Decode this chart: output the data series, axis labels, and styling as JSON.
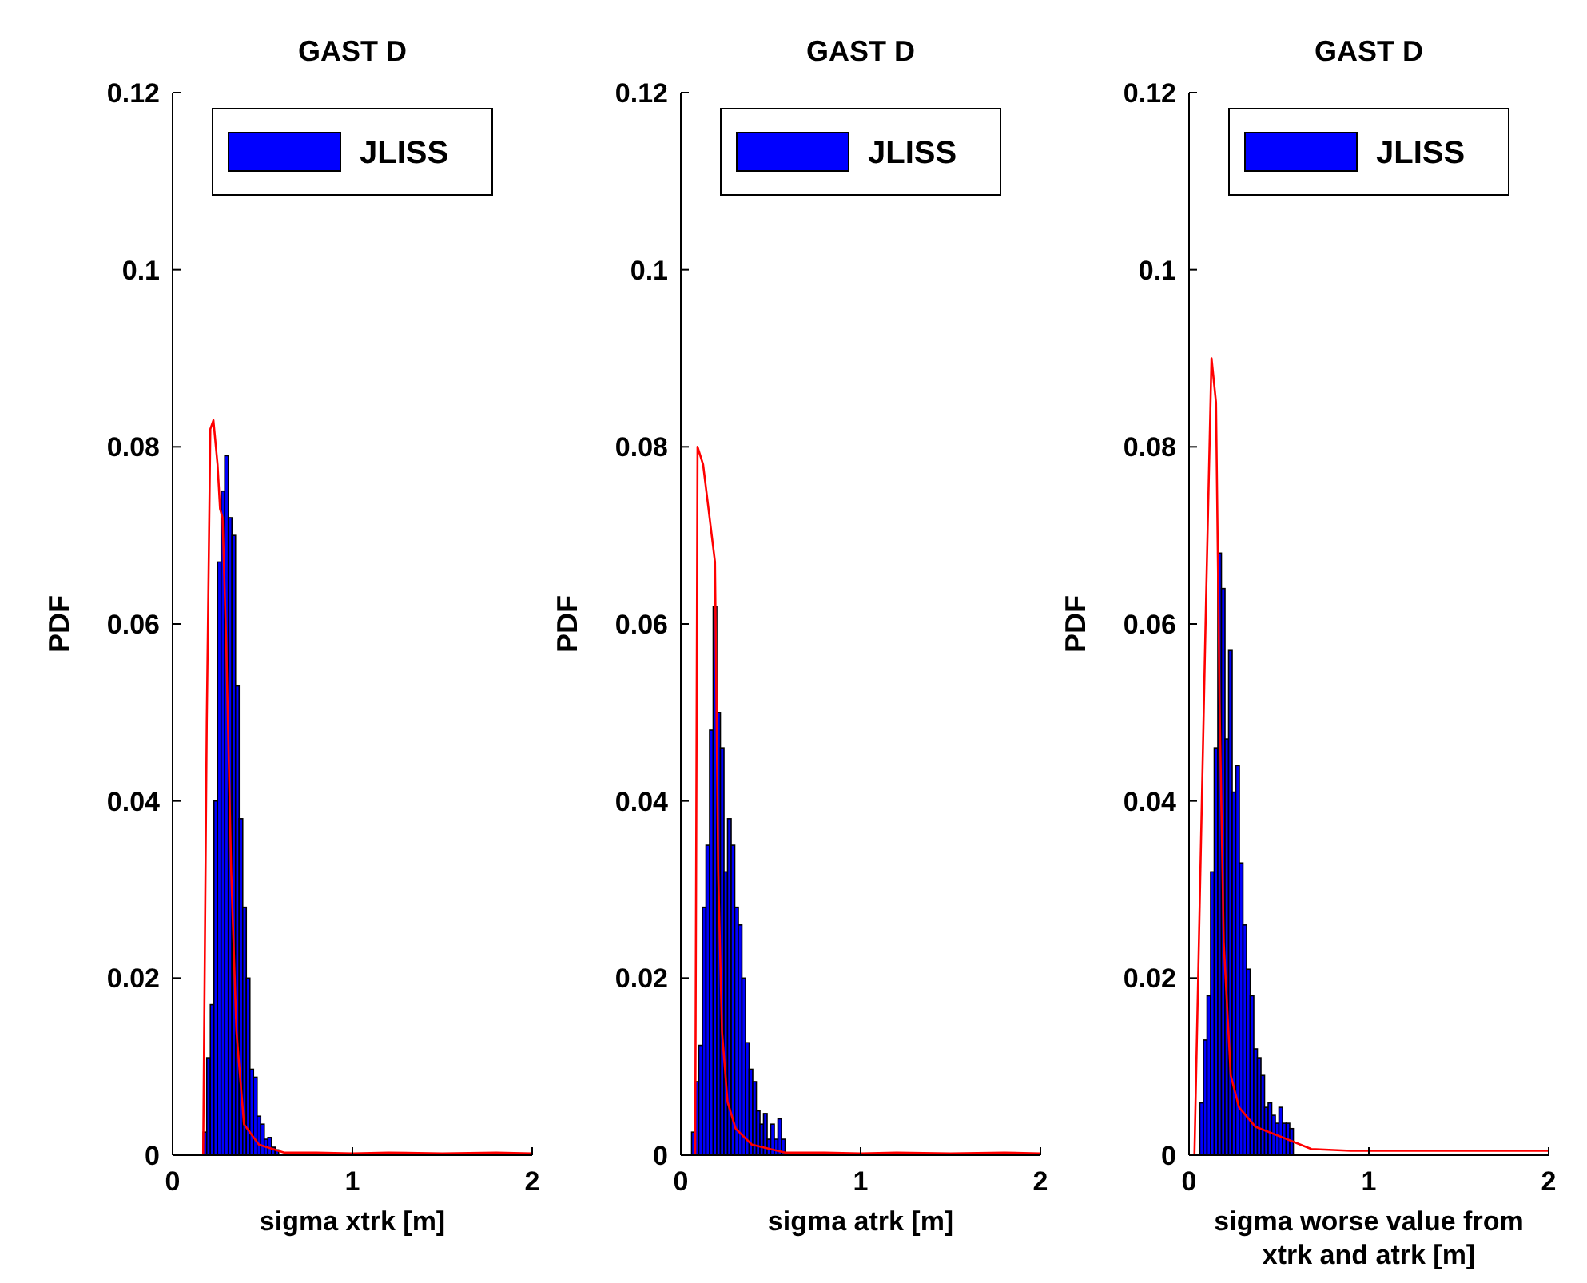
{
  "chart_data": [
    {
      "type": "histogram",
      "title": "GAST D",
      "xlabel": "sigma xtrk [m]",
      "ylabel": "PDF",
      "xlim": [
        0,
        2
      ],
      "xticks": [
        0,
        1,
        2
      ],
      "ylim": [
        0,
        0.12
      ],
      "yticks": [
        0,
        0.02,
        0.04,
        0.06,
        0.08,
        0.1,
        0.12
      ],
      "legend": "top",
      "grid": false,
      "series": [
        {
          "name": "JLISS",
          "color": "#0000ff",
          "bins": [
            0.17,
            0.19,
            0.21,
            0.23,
            0.25,
            0.27,
            0.29,
            0.31,
            0.33,
            0.35,
            0.37,
            0.39,
            0.41,
            0.43,
            0.45,
            0.47,
            0.49,
            0.51,
            0.53,
            0.55,
            0.57,
            0.59
          ],
          "values": [
            0.0026,
            0.011,
            0.017,
            0.04,
            0.067,
            0.075,
            0.079,
            0.072,
            0.07,
            0.053,
            0.038,
            0.028,
            0.02,
            0.0097,
            0.0088,
            0.0044,
            0.0035,
            0.0018,
            0.002,
            0.0009,
            0.0006
          ]
        },
        {
          "type": "line",
          "color": "#ff0000",
          "x": [
            0.17,
            0.19,
            0.21,
            0.227,
            0.25,
            0.264,
            0.278,
            0.298,
            0.326,
            0.355,
            0.397,
            0.48,
            0.62,
            0.8,
            1.0,
            1.2,
            1.5,
            1.8,
            2.0
          ],
          "values": [
            0,
            0.049,
            0.082,
            0.083,
            0.078,
            0.073,
            0.072,
            0.058,
            0.032,
            0.014,
            0.0035,
            0.0012,
            0.0003,
            0.0003,
            0.0002,
            0.0003,
            0.0002,
            0.0003,
            0.0002
          ]
        }
      ]
    },
    {
      "type": "histogram",
      "title": "GAST D",
      "xlabel": "sigma atrk [m]",
      "ylabel": "PDF",
      "xlim": [
        0,
        2
      ],
      "xticks": [
        0,
        1,
        2
      ],
      "ylim": [
        0,
        0.12
      ],
      "yticks": [
        0,
        0.02,
        0.04,
        0.06,
        0.08,
        0.1,
        0.12
      ],
      "legend": "top",
      "grid": false,
      "series": [
        {
          "name": "JLISS",
          "color": "#0000ff",
          "bins": [
            0.06,
            0.08,
            0.1,
            0.12,
            0.14,
            0.16,
            0.18,
            0.2,
            0.22,
            0.24,
            0.26,
            0.28,
            0.3,
            0.32,
            0.34,
            0.36,
            0.38,
            0.4,
            0.42,
            0.44,
            0.46,
            0.48,
            0.5,
            0.52,
            0.54,
            0.56,
            0.58
          ],
          "values": [
            0.0026,
            0.0083,
            0.0124,
            0.028,
            0.035,
            0.048,
            0.062,
            0.05,
            0.046,
            0.032,
            0.038,
            0.035,
            0.028,
            0.026,
            0.02,
            0.0127,
            0.0097,
            0.0083,
            0.005,
            0.0035,
            0.0047,
            0.0018,
            0.0035,
            0.0018,
            0.0041,
            0.0018
          ]
        },
        {
          "type": "line",
          "color": "#ff0000",
          "x": [
            0.08,
            0.093,
            0.124,
            0.154,
            0.19,
            0.208,
            0.229,
            0.26,
            0.305,
            0.395,
            0.58,
            0.8,
            1.0,
            1.2,
            1.5,
            1.8,
            2.0
          ],
          "values": [
            0,
            0.08,
            0.078,
            0.073,
            0.067,
            0.032,
            0.014,
            0.006,
            0.003,
            0.0012,
            0.0003,
            0.0003,
            0.0002,
            0.0003,
            0.0002,
            0.0003,
            0.0002
          ]
        }
      ]
    },
    {
      "type": "histogram",
      "title": "GAST D",
      "xlabel": "sigma worse value from xtrk and atrk [m]",
      "ylabel": "PDF",
      "xlim": [
        0,
        2
      ],
      "xticks": [
        0,
        1,
        2
      ],
      "ylim": [
        0,
        0.12
      ],
      "yticks": [
        0,
        0.02,
        0.04,
        0.06,
        0.08,
        0.1,
        0.12
      ],
      "legend": "top",
      "grid": false,
      "series": [
        {
          "name": "JLISS",
          "color": "#0000ff",
          "bins": [
            0.06,
            0.08,
            0.1,
            0.12,
            0.14,
            0.16,
            0.18,
            0.2,
            0.22,
            0.24,
            0.26,
            0.28,
            0.3,
            0.32,
            0.34,
            0.36,
            0.38,
            0.4,
            0.42,
            0.44,
            0.46,
            0.48,
            0.5,
            0.52,
            0.54,
            0.56,
            0.58
          ],
          "values": [
            0.0059,
            0.013,
            0.018,
            0.032,
            0.046,
            0.068,
            0.064,
            0.047,
            0.057,
            0.041,
            0.044,
            0.033,
            0.026,
            0.021,
            0.018,
            0.012,
            0.011,
            0.009,
            0.0054,
            0.0059,
            0.0045,
            0.0036,
            0.0054,
            0.0036,
            0.0036,
            0.003
          ]
        },
        {
          "type": "line",
          "color": "#ff0000",
          "x": [
            0.03,
            0.095,
            0.125,
            0.15,
            0.17,
            0.193,
            0.232,
            0.278,
            0.37,
            0.52,
            0.68,
            0.9,
            1.2,
            1.5,
            1.8,
            2.0
          ],
          "values": [
            0,
            0.063,
            0.09,
            0.085,
            0.051,
            0.024,
            0.009,
            0.0054,
            0.0032,
            0.002,
            0.0007,
            0.0005,
            0.0005,
            0.0005,
            0.0005,
            0.0005
          ]
        }
      ]
    }
  ]
}
